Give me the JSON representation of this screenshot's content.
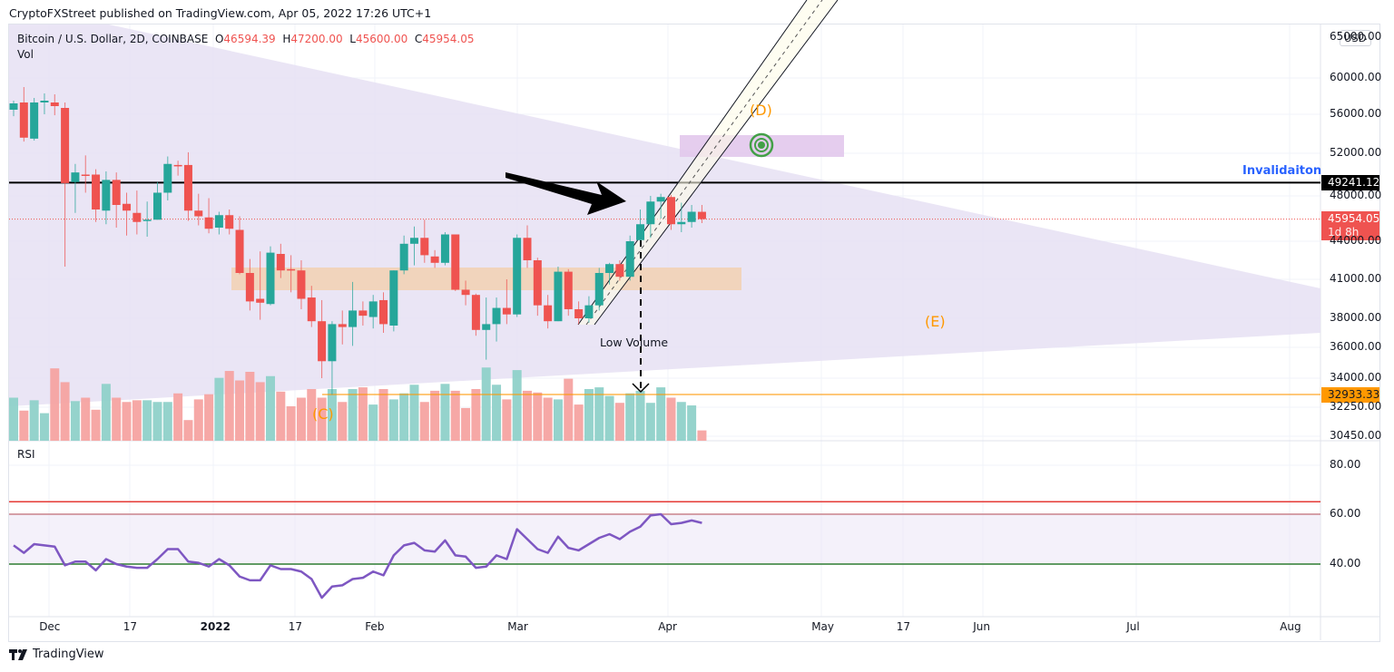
{
  "header": {
    "published_line": "CryptoFXStreet published on TradingView.com, Apr 05, 2022 17:26 UTC+1"
  },
  "legend": {
    "symbol": "Bitcoin / U.S. Dollar, 2D, COINBASE",
    "open_label": "O",
    "open": "46594.39",
    "high_label": "H",
    "high": "47200.00",
    "low_label": "L",
    "low": "45600.00",
    "close_label": "C",
    "close": "45954.05",
    "volume_label": "Vol"
  },
  "currency_button": "USD",
  "rsi_label": "RSI",
  "annotations": {
    "invalidation": "Invalidaiton",
    "wave_c": "(C)",
    "wave_d": "(D)",
    "wave_e": "(E)",
    "low_volume": "Low Volume"
  },
  "price_tags": {
    "invalidation_level": "49241.12",
    "last_price": "45954.05",
    "countdown": "1d 8h",
    "support_level": "32933.33"
  },
  "footer": {
    "brand": "TradingView"
  },
  "colors": {
    "up": "#26a69a",
    "down": "#ef5350",
    "triangle": "#e6e0f3",
    "zone_orange": "#f2cfae",
    "zone_pink": "#e2c8ec",
    "rsi_line": "#7e57c2",
    "support": "#ff9800",
    "invalidation_text": "#2962ff"
  },
  "chart_data": [
    {
      "type": "candlestick",
      "title": "Bitcoin / U.S. Dollar, 2D, COINBASE",
      "ylabel": "USD",
      "y_ticks": [
        "60000.00",
        "56000.00",
        "52000.00",
        "48000.00",
        "44000.00",
        "41000.00",
        "38000.00",
        "36000.00",
        "34000.00",
        "32250.00",
        "30450.00"
      ],
      "x_ticks": [
        "Dec",
        "17",
        "2022",
        "17",
        "Feb",
        "Mar",
        "Apr",
        "May",
        "17",
        "Jun",
        "Jul",
        "Aug"
      ],
      "horizontal_levels": {
        "invalidation": 49241.12,
        "support": 32933.33,
        "last": 45954.05
      },
      "candles_ohlc": [
        [
          56500,
          57500,
          55800,
          57200
        ],
        [
          57300,
          59000,
          53200,
          53600
        ],
        [
          53500,
          57800,
          53300,
          57300
        ],
        [
          57300,
          58300,
          56000,
          57500
        ],
        [
          57300,
          58200,
          55900,
          56900
        ],
        [
          56700,
          57300,
          42000,
          49200
        ],
        [
          49300,
          51000,
          46500,
          50200
        ],
        [
          50000,
          51800,
          48300,
          49900
        ],
        [
          50000,
          50500,
          45700,
          46800
        ],
        [
          46700,
          50300,
          45500,
          49500
        ],
        [
          49500,
          50200,
          45200,
          47200
        ],
        [
          47300,
          48300,
          44500,
          46700
        ],
        [
          46500,
          48500,
          44600,
          45700
        ],
        [
          45800,
          47500,
          44400,
          45900
        ],
        [
          45900,
          49300,
          45900,
          48300
        ],
        [
          48300,
          51700,
          47600,
          51000
        ],
        [
          50900,
          51300,
          49900,
          50800
        ],
        [
          50900,
          52100,
          45800,
          46700
        ],
        [
          46700,
          48200,
          45400,
          46200
        ],
        [
          46100,
          47800,
          44700,
          45100
        ],
        [
          45200,
          46600,
          44600,
          46300
        ],
        [
          46300,
          46800,
          44600,
          45100
        ],
        [
          45000,
          46200,
          41400,
          41500
        ],
        [
          41500,
          42600,
          38600,
          39300
        ],
        [
          39500,
          43200,
          37900,
          39200
        ],
        [
          39100,
          43600,
          39000,
          43100
        ],
        [
          43000,
          43800,
          41100,
          41700
        ],
        [
          41800,
          42900,
          40000,
          41700
        ],
        [
          41700,
          42500,
          38700,
          39500
        ],
        [
          39600,
          40500,
          37400,
          37800
        ],
        [
          37800,
          39400,
          34000,
          35100
        ],
        [
          35100,
          37800,
          33000,
          37600
        ],
        [
          37600,
          38600,
          36200,
          37400
        ],
        [
          37400,
          40800,
          36100,
          38600
        ],
        [
          38600,
          39300,
          37500,
          38200
        ],
        [
          38100,
          39800,
          37300,
          39300
        ],
        [
          39400,
          40000,
          37000,
          37600
        ],
        [
          37500,
          41700,
          37100,
          41700
        ],
        [
          41700,
          44500,
          41400,
          43800
        ],
        [
          43800,
          45300,
          42100,
          44300
        ],
        [
          44300,
          45900,
          42300,
          42900
        ],
        [
          42800,
          43300,
          41900,
          42300
        ],
        [
          42300,
          44800,
          42100,
          44600
        ],
        [
          44600,
          44600,
          40100,
          40200
        ],
        [
          40200,
          40900,
          39000,
          39800
        ],
        [
          39800,
          39900,
          36800,
          37200
        ],
        [
          37200,
          39600,
          35200,
          37600
        ],
        [
          37600,
          39600,
          36400,
          38800
        ],
        [
          38800,
          41000,
          37600,
          38300
        ],
        [
          38300,
          44600,
          38100,
          44300
        ],
        [
          44300,
          45400,
          41900,
          42500
        ],
        [
          42500,
          42700,
          38200,
          39000
        ],
        [
          39000,
          39800,
          37300,
          37800
        ],
        [
          37800,
          42000,
          37800,
          41600
        ],
        [
          41600,
          41800,
          38200,
          38700
        ],
        [
          38700,
          39300,
          37600,
          38000
        ],
        [
          38000,
          39700,
          37700,
          39000
        ],
        [
          39000,
          41900,
          38600,
          41500
        ],
        [
          41500,
          42300,
          40600,
          42200
        ],
        [
          42200,
          42500,
          40900,
          41200
        ],
        [
          41200,
          44500,
          40900,
          44000
        ],
        [
          44100,
          46800,
          43900,
          45500
        ],
        [
          45500,
          48000,
          44300,
          47500
        ],
        [
          47500,
          48200,
          46000,
          47900
        ],
        [
          47900,
          48100,
          45000,
          45500
        ],
        [
          45500,
          47400,
          44800,
          45700
        ],
        [
          45700,
          47200,
          45200,
          46600
        ],
        [
          46594,
          47200,
          45600,
          45954
        ]
      ],
      "volume_relative": [
        0.5,
        0.35,
        0.47,
        0.32,
        0.84,
        0.68,
        0.46,
        0.5,
        0.36,
        0.66,
        0.5,
        0.45,
        0.47,
        0.47,
        0.45,
        0.45,
        0.55,
        0.24,
        0.48,
        0.54,
        0.73,
        0.81,
        0.7,
        0.8,
        0.68,
        0.75,
        0.57,
        0.4,
        0.5,
        0.6,
        0.5,
        0.6,
        0.45,
        0.6,
        0.62,
        0.42,
        0.6,
        0.48,
        0.55,
        0.65,
        0.45,
        0.58,
        0.66,
        0.58,
        0.38,
        0.6,
        0.85,
        0.65,
        0.48,
        0.82,
        0.58,
        0.56,
        0.5,
        0.48,
        0.72,
        0.42,
        0.6,
        0.62,
        0.52,
        0.44,
        0.55,
        0.58,
        0.44,
        0.62,
        0.5,
        0.45,
        0.41,
        0.12
      ]
    },
    {
      "type": "line",
      "title": "RSI",
      "y_ticks": [
        "80.00",
        "60.00",
        "40.00"
      ],
      "bands": {
        "upper": 60,
        "lower": 40,
        "overbought_line": 65
      },
      "values": [
        47.5,
        44.5,
        48,
        47.5,
        47,
        39.5,
        41,
        41,
        37.5,
        42,
        40,
        39,
        38.5,
        38.5,
        42,
        46,
        46,
        41,
        40.5,
        39,
        42,
        39.5,
        35,
        33.5,
        33.5,
        39.5,
        38,
        38,
        37,
        34,
        26.5,
        31,
        31.5,
        34,
        34.5,
        37,
        35.5,
        43.5,
        47.5,
        48.5,
        45.5,
        45,
        49.5,
        43.5,
        43,
        38.5,
        39,
        43.5,
        42,
        54,
        50,
        46,
        44.5,
        51,
        46.5,
        45.5,
        48,
        50.5,
        52,
        50,
        53,
        55,
        59.5,
        60,
        56,
        56.5,
        57.5,
        56.5
      ]
    }
  ]
}
